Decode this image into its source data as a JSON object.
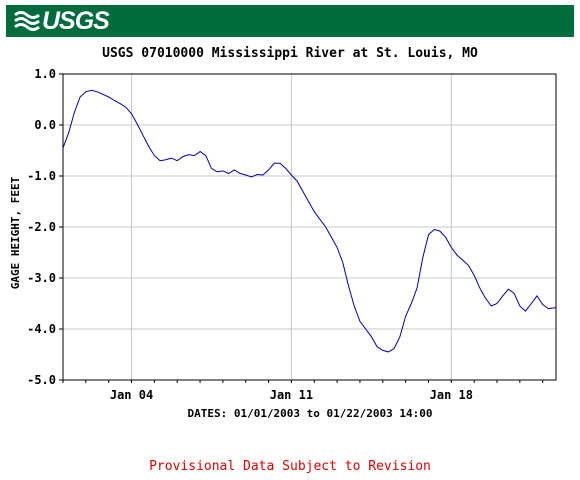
{
  "header": {
    "logo_text": "USGS",
    "logo_icon": "usgs-wave-logo-icon",
    "banner_color": "#006b3d"
  },
  "footer": {
    "notice": "Provisional Data Subject to Revision",
    "color": "#e00000"
  },
  "chart_data": {
    "type": "line",
    "title": "USGS 07010000 Mississippi River at St. Louis, MO",
    "xlabel": "DATES: 01/01/2003 to 01/22/2003 14:00",
    "ylabel": "GAGE HEIGHT, FEET",
    "ylim": [
      -5.0,
      1.0
    ],
    "xlim": [
      "2003-01-01 00:00",
      "2003-01-22 14:00"
    ],
    "yticks": [
      "1.0",
      "0.0",
      "-1.0",
      "-2.0",
      "-3.0",
      "-4.0",
      "-5.0"
    ],
    "ytick_values": [
      1.0,
      0.0,
      -1.0,
      -2.0,
      -3.0,
      -4.0,
      -5.0
    ],
    "xticks": [
      "Jan 04",
      "Jan 11",
      "Jan 18"
    ],
    "xtick_dates": [
      "2003-01-04",
      "2003-01-11",
      "2003-01-18"
    ],
    "grid": true,
    "line_color": "#0000b0",
    "series": [
      {
        "points": [
          [
            "2003-01-01 00:00",
            -0.45
          ],
          [
            "2003-01-01 06:00",
            -0.15
          ],
          [
            "2003-01-01 12:00",
            0.25
          ],
          [
            "2003-01-01 18:00",
            0.55
          ],
          [
            "2003-01-02 00:00",
            0.65
          ],
          [
            "2003-01-02 06:00",
            0.68
          ],
          [
            "2003-01-02 12:00",
            0.65
          ],
          [
            "2003-01-02 18:00",
            0.6
          ],
          [
            "2003-01-03 00:00",
            0.55
          ],
          [
            "2003-01-03 06:00",
            0.48
          ],
          [
            "2003-01-03 12:00",
            0.42
          ],
          [
            "2003-01-03 18:00",
            0.35
          ],
          [
            "2003-01-04 00:00",
            0.22
          ],
          [
            "2003-01-04 06:00",
            0.02
          ],
          [
            "2003-01-04 12:00",
            -0.2
          ],
          [
            "2003-01-04 18:00",
            -0.42
          ],
          [
            "2003-01-05 00:00",
            -0.6
          ],
          [
            "2003-01-05 06:00",
            -0.7
          ],
          [
            "2003-01-05 12:00",
            -0.68
          ],
          [
            "2003-01-05 18:00",
            -0.65
          ],
          [
            "2003-01-06 00:00",
            -0.7
          ],
          [
            "2003-01-06 06:00",
            -0.62
          ],
          [
            "2003-01-06 12:00",
            -0.58
          ],
          [
            "2003-01-06 18:00",
            -0.6
          ],
          [
            "2003-01-07 00:00",
            -0.52
          ],
          [
            "2003-01-07 06:00",
            -0.6
          ],
          [
            "2003-01-07 12:00",
            -0.85
          ],
          [
            "2003-01-07 18:00",
            -0.92
          ],
          [
            "2003-01-08 00:00",
            -0.9
          ],
          [
            "2003-01-08 06:00",
            -0.95
          ],
          [
            "2003-01-08 12:00",
            -0.88
          ],
          [
            "2003-01-08 18:00",
            -0.95
          ],
          [
            "2003-01-09 00:00",
            -0.98
          ],
          [
            "2003-01-09 06:00",
            -1.02
          ],
          [
            "2003-01-09 12:00",
            -0.97
          ],
          [
            "2003-01-09 18:00",
            -0.98
          ],
          [
            "2003-01-10 00:00",
            -0.88
          ],
          [
            "2003-01-10 06:00",
            -0.75
          ],
          [
            "2003-01-10 12:00",
            -0.75
          ],
          [
            "2003-01-10 18:00",
            -0.85
          ],
          [
            "2003-01-11 00:00",
            -0.98
          ],
          [
            "2003-01-11 06:00",
            -1.1
          ],
          [
            "2003-01-11 12:00",
            -1.3
          ],
          [
            "2003-01-11 18:00",
            -1.5
          ],
          [
            "2003-01-12 00:00",
            -1.7
          ],
          [
            "2003-01-12 06:00",
            -1.85
          ],
          [
            "2003-01-12 12:00",
            -2.0
          ],
          [
            "2003-01-12 18:00",
            -2.2
          ],
          [
            "2003-01-13 00:00",
            -2.4
          ],
          [
            "2003-01-13 06:00",
            -2.7
          ],
          [
            "2003-01-13 12:00",
            -3.15
          ],
          [
            "2003-01-13 18:00",
            -3.55
          ],
          [
            "2003-01-14 00:00",
            -3.85
          ],
          [
            "2003-01-14 06:00",
            -4.0
          ],
          [
            "2003-01-14 12:00",
            -4.15
          ],
          [
            "2003-01-14 18:00",
            -4.35
          ],
          [
            "2003-01-15 00:00",
            -4.42
          ],
          [
            "2003-01-15 06:00",
            -4.45
          ],
          [
            "2003-01-15 12:00",
            -4.38
          ],
          [
            "2003-01-15 18:00",
            -4.15
          ],
          [
            "2003-01-16 00:00",
            -3.75
          ],
          [
            "2003-01-16 06:00",
            -3.5
          ],
          [
            "2003-01-16 12:00",
            -3.2
          ],
          [
            "2003-01-16 18:00",
            -2.6
          ],
          [
            "2003-01-17 00:00",
            -2.15
          ],
          [
            "2003-01-17 06:00",
            -2.05
          ],
          [
            "2003-01-17 12:00",
            -2.08
          ],
          [
            "2003-01-17 18:00",
            -2.2
          ],
          [
            "2003-01-18 00:00",
            -2.4
          ],
          [
            "2003-01-18 06:00",
            -2.55
          ],
          [
            "2003-01-18 12:00",
            -2.65
          ],
          [
            "2003-01-18 18:00",
            -2.75
          ],
          [
            "2003-01-19 00:00",
            -2.95
          ],
          [
            "2003-01-19 06:00",
            -3.2
          ],
          [
            "2003-01-19 12:00",
            -3.4
          ],
          [
            "2003-01-19 18:00",
            -3.55
          ],
          [
            "2003-01-20 00:00",
            -3.5
          ],
          [
            "2003-01-20 06:00",
            -3.35
          ],
          [
            "2003-01-20 12:00",
            -3.22
          ],
          [
            "2003-01-20 18:00",
            -3.3
          ],
          [
            "2003-01-21 00:00",
            -3.55
          ],
          [
            "2003-01-21 06:00",
            -3.65
          ],
          [
            "2003-01-21 12:00",
            -3.5
          ],
          [
            "2003-01-21 18:00",
            -3.35
          ],
          [
            "2003-01-22 00:00",
            -3.52
          ],
          [
            "2003-01-22 06:00",
            -3.6
          ],
          [
            "2003-01-22 14:00",
            -3.58
          ]
        ]
      }
    ]
  }
}
